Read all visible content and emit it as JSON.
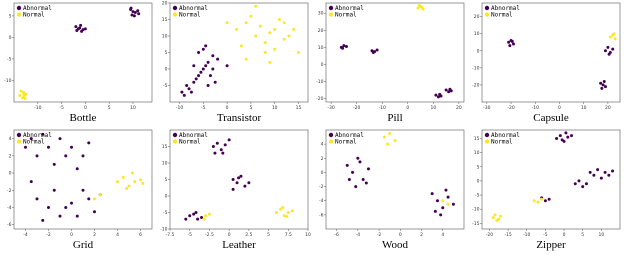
{
  "chart_data": [
    {
      "type": "scatter",
      "title": "Bottle",
      "xlim": [
        -15,
        14
      ],
      "ylim": [
        -15,
        8
      ],
      "xticks": [
        -10,
        -5,
        0,
        5,
        10
      ],
      "yticks": [
        -10,
        -5,
        0,
        5
      ],
      "series": [
        {
          "name": "Abnormal",
          "color": "#440154",
          "x": [
            9.5,
            10,
            10.5,
            11,
            9.8,
            10.3,
            11.2,
            9.6,
            -2,
            -1.5,
            -1,
            -0.5,
            -1.8,
            -1.2,
            -0.8,
            0
          ],
          "values": [
            6.5,
            6,
            5.8,
            6.2,
            5.2,
            5,
            5.5,
            6.8,
            2.5,
            2,
            2.8,
            1.8,
            1.6,
            2.2,
            1.4,
            2
          ]
        },
        {
          "name": "Normal",
          "color": "#fde725",
          "x": [
            -13.5,
            -13,
            -12.8,
            -13.2,
            -12.5,
            -13.8,
            -13,
            -12.7
          ],
          "values": [
            -12.5,
            -13,
            -13.5,
            -14,
            -13.2,
            -13.5,
            -12.8,
            -14.2
          ]
        }
      ]
    },
    {
      "type": "scatter",
      "title": "Transistor",
      "xlim": [
        -12,
        17
      ],
      "ylim": [
        -10,
        20
      ],
      "xticks": [
        -10,
        -5,
        0,
        5,
        10,
        15
      ],
      "yticks": [
        -5,
        0,
        5,
        10,
        15,
        20
      ],
      "series": [
        {
          "name": "Abnormal",
          "color": "#440154",
          "x": [
            -9,
            -8,
            -7,
            -6,
            -5,
            -4,
            -3,
            -2,
            -7.5,
            -6.5,
            -5.5,
            -4.5,
            -3.5,
            -8.5,
            -6,
            -5,
            -4,
            -3,
            -2.5,
            -7,
            -9.5,
            -4.5,
            0
          ],
          "values": [
            -8,
            -6,
            -4,
            -2,
            0,
            2,
            4,
            3,
            -7,
            -3,
            -1,
            1,
            -2,
            -5,
            5,
            6,
            -5,
            0,
            -4,
            1,
            -7,
            7,
            1
          ]
        },
        {
          "name": "Normal",
          "color": "#fde725",
          "x": [
            2,
            4,
            6,
            8,
            10,
            12,
            14,
            3,
            5,
            7,
            9,
            11,
            13,
            15,
            4,
            6,
            8,
            10,
            12,
            0,
            9
          ],
          "values": [
            12,
            14,
            10,
            8,
            6,
            9,
            12,
            7,
            16,
            13,
            11,
            15,
            10,
            5,
            3,
            19,
            5,
            12,
            14,
            14,
            2
          ]
        }
      ]
    },
    {
      "type": "scatter",
      "title": "Pill",
      "xlim": [
        -32,
        22
      ],
      "ylim": [
        -22,
        36
      ],
      "xticks": [
        -30,
        -20,
        -10,
        0,
        10,
        20
      ],
      "yticks": [
        -20,
        -10,
        0,
        10,
        20,
        30
      ],
      "series": [
        {
          "name": "Abnormal",
          "color": "#440154",
          "x": [
            -26,
            -25,
            -24,
            -25.5,
            -14,
            -13,
            -12,
            -13.5,
            11,
            12,
            13,
            12.5,
            15,
            16,
            17,
            16.5
          ],
          "values": [
            10,
            11,
            10.5,
            9.5,
            8,
            7.5,
            8.5,
            7,
            -18,
            -19,
            -18.5,
            -17.5,
            -15,
            -16,
            -15.5,
            -14.5
          ]
        },
        {
          "name": "Normal",
          "color": "#fde725",
          "x": [
            4,
            5,
            6,
            5.5,
            4.5
          ],
          "values": [
            33,
            34,
            32.5,
            33.5,
            34.5
          ]
        }
      ]
    },
    {
      "type": "scatter",
      "title": "Capsule",
      "xlim": [
        -32,
        25
      ],
      "ylim": [
        -30,
        28
      ],
      "xticks": [
        -30,
        -20,
        -10,
        0,
        10,
        20
      ],
      "yticks": [
        -20,
        -10,
        0,
        10,
        20
      ],
      "series": [
        {
          "name": "Abnormal",
          "color": "#440154",
          "x": [
            -21,
            -20,
            -19,
            -20.5,
            -19.5,
            19,
            20,
            21,
            22,
            20.5,
            17,
            18,
            19,
            18.5,
            17.5
          ],
          "values": [
            5,
            6,
            4,
            3,
            5.5,
            0,
            2,
            -1,
            1,
            -2,
            -19,
            -20,
            -21,
            -18,
            -22
          ]
        },
        {
          "name": "Normal",
          "color": "#fde725",
          "x": [
            21,
            22,
            23,
            22.5
          ],
          "values": [
            8,
            9,
            7,
            10
          ]
        }
      ]
    },
    {
      "type": "scatter",
      "title": "Grid",
      "xlim": [
        -5,
        7
      ],
      "ylim": [
        -6.5,
        5
      ],
      "xticks": [
        -4,
        -2,
        0,
        2,
        4,
        6
      ],
      "yticks": [
        -6,
        -4,
        -2,
        0,
        2,
        4
      ],
      "series": [
        {
          "name": "Abnormal",
          "color": "#440154",
          "x": [
            -4,
            -3.5,
            -3,
            -2.5,
            -2,
            -1.5,
            -1,
            -0.5,
            0,
            0.5,
            1,
            1.5,
            -3,
            -2,
            -1,
            0,
            1,
            2,
            -3.5,
            -2.5,
            -1.5,
            -0.5,
            0.5,
            1.5,
            2.5
          ],
          "values": [
            3,
            4,
            2,
            4.5,
            3,
            1,
            4,
            2,
            3,
            0.5,
            2,
            3.5,
            -3,
            -4,
            -5,
            -3.5,
            -2,
            -4.5,
            -1,
            -5.5,
            -2,
            -4,
            -5,
            -3,
            -2.5
          ]
        },
        {
          "name": "Normal",
          "color": "#fde725",
          "x": [
            4,
            4.5,
            5,
            5.5,
            6,
            4.8,
            5.3,
            6.2,
            2,
            2.5
          ],
          "values": [
            -1,
            -0.5,
            -1.5,
            -1,
            -0.8,
            -1.8,
            0,
            -1.2,
            -3,
            -2.5
          ]
        }
      ]
    },
    {
      "type": "scatter",
      "title": "Leather",
      "xlim": [
        -7.5,
        10
      ],
      "ylim": [
        -10,
        20
      ],
      "xticks": [
        -7.5,
        -5,
        -2.5,
        0,
        2.5,
        5,
        7.5,
        10
      ],
      "yticks": [
        -10,
        -5,
        0,
        5,
        10,
        15
      ],
      "series": [
        {
          "name": "Abnormal",
          "color": "#440154",
          "x": [
            -2,
            -1.5,
            -1,
            -0.5,
            0,
            -1.8,
            -0.8,
            0.5,
            1,
            1.5,
            2,
            0.5,
            1.2,
            2.5,
            -5,
            -4.5,
            -4,
            -3.5,
            -5.5,
            -4.2
          ],
          "values": [
            15,
            16,
            14,
            15.5,
            17,
            13,
            13,
            5,
            4,
            6,
            3,
            2,
            5.5,
            4,
            -6,
            -5.5,
            -7,
            -6.5,
            -7,
            -5
          ]
        },
        {
          "name": "Normal",
          "color": "#fde725",
          "x": [
            6,
            6.5,
            7,
            7.5,
            8,
            6.8,
            7.3,
            -3,
            -2.5,
            -3.2
          ],
          "values": [
            -5,
            -4,
            -6,
            -5,
            -4.5,
            -3.5,
            -6.2,
            -6,
            -5.5,
            -7
          ]
        }
      ]
    },
    {
      "type": "scatter",
      "title": "Wood",
      "xlim": [
        -7,
        6
      ],
      "ylim": [
        -8,
        6
      ],
      "xticks": [
        -6,
        -4,
        -2,
        0,
        2,
        4
      ],
      "yticks": [
        -6,
        -4,
        -2,
        0,
        2,
        4
      ],
      "series": [
        {
          "name": "Abnormal",
          "color": "#440154",
          "x": [
            -5,
            -4.5,
            -4,
            -3.5,
            -3,
            -4.2,
            -3.8,
            -4.8,
            -3.2,
            3,
            3.5,
            4,
            4.5,
            5,
            3.8,
            4.3,
            3.3
          ],
          "values": [
            1,
            0,
            2,
            -1,
            0.5,
            -2,
            1.5,
            -1,
            -1.5,
            -3,
            -4,
            -5,
            -3.5,
            -4.5,
            -6,
            -2.5,
            -5.5
          ]
        },
        {
          "name": "Normal",
          "color": "#fde725",
          "x": [
            -1.5,
            -1,
            -0.5,
            -1.2,
            4,
            4.5
          ],
          "values": [
            5,
            5.5,
            4.5,
            4,
            -4,
            -4.5
          ]
        }
      ]
    },
    {
      "type": "scatter",
      "title": "Zipper",
      "xlim": [
        -22,
        15
      ],
      "ylim": [
        -17,
        18
      ],
      "xticks": [
        -20,
        -15,
        -10,
        -5,
        0,
        5,
        10
      ],
      "yticks": [
        -15,
        -10,
        -5,
        0,
        5,
        10,
        15
      ],
      "series": [
        {
          "name": "Abnormal",
          "color": "#440154",
          "x": [
            -2,
            -1,
            0,
            1,
            2,
            -0.5,
            0.5,
            7,
            8,
            9,
            10,
            11,
            12,
            13,
            3,
            4,
            5,
            6,
            -6,
            -5,
            -4
          ],
          "values": [
            15,
            16,
            14,
            15.5,
            16,
            14.5,
            17,
            3,
            2,
            4,
            1,
            3,
            2,
            3.5,
            -1,
            0,
            -2,
            -1,
            -6,
            -7,
            -6.5
          ]
        },
        {
          "name": "Normal",
          "color": "#fde725",
          "x": [
            -19,
            -18,
            -17,
            -18.5,
            -17.5,
            -8,
            -7,
            -6
          ],
          "values": [
            -13,
            -14,
            -12.5,
            -12,
            -13.5,
            -7,
            -7.5,
            -6.5
          ]
        }
      ]
    }
  ]
}
